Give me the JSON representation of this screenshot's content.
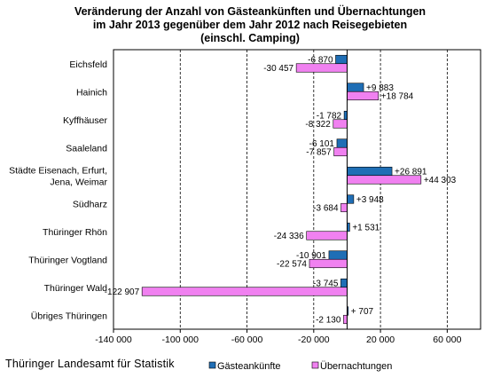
{
  "source": "Thüringer Landesamt für Statistik",
  "colors": {
    "guests": "#1F6EB5",
    "nights": "#F081F0"
  },
  "chart_data": {
    "type": "bar",
    "orientation": "horizontal",
    "title_lines": [
      "Veränderung der Anzahl von Gästeankünften und Übernachtungen",
      "im Jahr 2013 gegenüber dem Jahr 2012 nach Reisegebieten",
      "(einschl. Camping)"
    ],
    "categories": [
      [
        "Eichsfeld"
      ],
      [
        "Hainich"
      ],
      [
        "Kyffhäuser"
      ],
      [
        "Saaleland"
      ],
      [
        "Städte Eisenach, Erfurt,",
        "Jena, Weimar"
      ],
      [
        "Südharz"
      ],
      [
        "Thüringer Rhön"
      ],
      [
        "Thüringer Vogtland"
      ],
      [
        "Thüringer Wald"
      ],
      [
        "Übriges Thüringen"
      ]
    ],
    "series": [
      {
        "name": "Gästeankünfte",
        "values": [
          -6870,
          9883,
          -1782,
          -6101,
          26891,
          3948,
          1531,
          -10901,
          -3745,
          707
        ],
        "labels": [
          "-6 870",
          "+9 883",
          "-1 782",
          "-6 101",
          "+26 891",
          "+3 948",
          "+1 531",
          "-10 901",
          "-3 745",
          "+ 707"
        ]
      },
      {
        "name": "Übernachtungen",
        "values": [
          -30457,
          18784,
          -8322,
          -7857,
          44303,
          -3684,
          -24336,
          -22574,
          -122907,
          -2130
        ],
        "labels": [
          "-30 457",
          "+18 784",
          "-8 322",
          "-7 857",
          "+44 303",
          "-3 684",
          "-24 336",
          "-22 574",
          "-122 907",
          "-2 130"
        ]
      }
    ],
    "ticks": [
      -140000,
      -100000,
      -60000,
      -20000,
      20000,
      60000
    ],
    "tick_labels": [
      "-140 000",
      "-100 000",
      "-60 000",
      "-20 000",
      "20 000",
      "60 000"
    ],
    "xlim": [
      -140000,
      80000
    ],
    "grid": "vertical-dashed",
    "legend": "bottom"
  }
}
